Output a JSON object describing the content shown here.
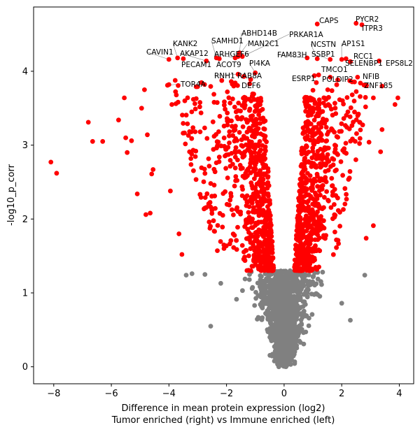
{
  "chart_data": {
    "type": "scatter",
    "xlabel_line1": "Difference in mean protein expression (log2)",
    "xlabel_line2": "Tumor enriched (right) vs Immune enriched (left)",
    "ylabel": "-log10_p_corr",
    "xlim": [
      -8.7,
      4.5
    ],
    "ylim": [
      -0.23,
      4.87
    ],
    "xticks": [
      -8,
      -6,
      -4,
      -2,
      0,
      2,
      4
    ],
    "yticks": [
      0,
      1,
      2,
      3,
      4
    ],
    "colors": {
      "significant": "#ff0000",
      "not_significant": "#808080",
      "leader_line": "#808080"
    },
    "significance_threshold": 1.3,
    "labeled_points": [
      {
        "gene": "CAPS",
        "x": 1.15,
        "y": 4.64
      },
      {
        "gene": "PYCR2",
        "x": 2.5,
        "y": 4.65
      },
      {
        "gene": "ITPR3",
        "x": 2.7,
        "y": 4.63
      },
      {
        "gene": "ABHD14B",
        "x": -1.55,
        "y": 4.25
      },
      {
        "gene": "PRKAR1A",
        "x": -1.45,
        "y": 4.2
      },
      {
        "gene": "SAMHD1",
        "x": -2.35,
        "y": 4.18
      },
      {
        "gene": "MAN2C1",
        "x": -1.6,
        "y": 4.2
      },
      {
        "gene": "NCSTN",
        "x": 1.15,
        "y": 4.17
      },
      {
        "gene": "AP1S1",
        "x": 2.0,
        "y": 4.16
      },
      {
        "gene": "KANK2",
        "x": -3.7,
        "y": 4.18
      },
      {
        "gene": "CAVIN1",
        "x": -4.0,
        "y": 4.16
      },
      {
        "gene": "AKAP12",
        "x": -2.7,
        "y": 4.14
      },
      {
        "gene": "ARHGEF6",
        "x": -1.7,
        "y": 4.18
      },
      {
        "gene": "FAM83H",
        "x": 0.8,
        "y": 4.18
      },
      {
        "gene": "SSBP1",
        "x": 1.6,
        "y": 4.16
      },
      {
        "gene": "RCC1",
        "x": 2.15,
        "y": 4.17
      },
      {
        "gene": "SELENBP1",
        "x": 2.3,
        "y": 4.13
      },
      {
        "gene": "EPS8L2",
        "x": 3.3,
        "y": 4.14
      },
      {
        "gene": "PECAM1",
        "x": -3.5,
        "y": 4.17
      },
      {
        "gene": "ACOT9",
        "x": -2.25,
        "y": 4.17
      },
      {
        "gene": "PI4KA",
        "x": -1.0,
        "y": 3.98
      },
      {
        "gene": "TMCO1",
        "x": 1.2,
        "y": 3.95
      },
      {
        "gene": "RNH1",
        "x": -1.6,
        "y": 3.96
      },
      {
        "gene": "RAB8A",
        "x": -1.4,
        "y": 3.93
      },
      {
        "gene": "ESRP1",
        "x": 1.05,
        "y": 3.94
      },
      {
        "gene": "POLDIP2",
        "x": 1.6,
        "y": 3.92
      },
      {
        "gene": "NFIB",
        "x": 2.55,
        "y": 3.92
      },
      {
        "gene": "TOR4A",
        "x": -4.05,
        "y": 3.81
      },
      {
        "gene": "DEF6",
        "x": -1.75,
        "y": 3.8
      },
      {
        "gene": "ZNF185",
        "x": 2.65,
        "y": 3.84
      }
    ],
    "scatter_generation": {
      "seed": 20240501,
      "gray_core_count": 1150,
      "red_core_left_count": 520,
      "red_core_right_count": 560,
      "red_outer_left_count": 230,
      "red_outer_right_count": 150
    },
    "explicit_points": [
      {
        "x": -8.1,
        "y": 2.77,
        "sig": true
      },
      {
        "x": -7.9,
        "y": 2.62,
        "sig": true
      },
      {
        "x": -6.8,
        "y": 3.31,
        "sig": true
      },
      {
        "x": -6.65,
        "y": 3.05,
        "sig": true
      },
      {
        "x": -6.3,
        "y": 3.05,
        "sig": true
      },
      {
        "x": -5.75,
        "y": 3.34,
        "sig": true
      },
      {
        "x": -5.55,
        "y": 3.64,
        "sig": true
      },
      {
        "x": -5.5,
        "y": 3.1,
        "sig": true
      },
      {
        "x": -5.45,
        "y": 2.9,
        "sig": true
      },
      {
        "x": -5.3,
        "y": 3.06,
        "sig": true
      },
      {
        "x": -5.1,
        "y": 2.34,
        "sig": true
      },
      {
        "x": -4.95,
        "y": 3.5,
        "sig": true
      },
      {
        "x": -4.85,
        "y": 3.75,
        "sig": true
      },
      {
        "x": -4.8,
        "y": 2.06,
        "sig": true
      },
      {
        "x": -4.75,
        "y": 3.14,
        "sig": true
      },
      {
        "x": -4.65,
        "y": 2.08,
        "sig": true
      },
      {
        "x": -4.6,
        "y": 2.61,
        "sig": true
      },
      {
        "x": -4.55,
        "y": 2.67,
        "sig": true
      },
      {
        "x": -4.0,
        "y": 3.82,
        "sig": true
      },
      {
        "x": -3.95,
        "y": 2.38,
        "sig": true
      },
      {
        "x": -3.9,
        "y": 3.55,
        "sig": true
      },
      {
        "x": -3.65,
        "y": 1.8,
        "sig": true
      },
      {
        "x": -3.55,
        "y": 1.52,
        "sig": true
      },
      {
        "x": 3.85,
        "y": 3.55,
        "sig": true
      },
      {
        "x": 3.95,
        "y": 3.64,
        "sig": true
      },
      {
        "x": 3.4,
        "y": 3.21,
        "sig": true
      },
      {
        "x": 3.35,
        "y": 2.91,
        "sig": true
      },
      {
        "x": 3.4,
        "y": 3.8,
        "sig": true
      },
      {
        "x": 3.1,
        "y": 1.91,
        "sig": true
      },
      {
        "x": 3.1,
        "y": 3.64,
        "sig": true
      },
      {
        "x": 2.95,
        "y": 3.04,
        "sig": true
      },
      {
        "x": 2.85,
        "y": 1.74,
        "sig": true
      },
      {
        "x": -3.4,
        "y": 1.24,
        "sig": false
      },
      {
        "x": -3.2,
        "y": 1.26,
        "sig": false
      },
      {
        "x": -2.75,
        "y": 1.25,
        "sig": false
      },
      {
        "x": -2.55,
        "y": 0.55,
        "sig": false
      },
      {
        "x": -2.2,
        "y": 1.13,
        "sig": false
      },
      {
        "x": 2.8,
        "y": 1.24,
        "sig": false
      },
      {
        "x": 2.3,
        "y": 0.63,
        "sig": false
      },
      {
        "x": 2.0,
        "y": 0.86,
        "sig": false
      }
    ]
  }
}
